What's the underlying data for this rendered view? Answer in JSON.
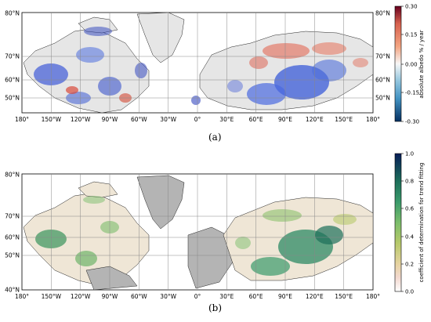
{
  "panels": [
    {
      "id": "a",
      "label": "(a)",
      "lat_ticks_left": [
        "80°N",
        "70°N",
        "60°N",
        "50°N"
      ],
      "lat_ticks_right": [
        "80°N",
        "70°N",
        "60°N",
        "50°N"
      ],
      "lon_ticks": [
        "180°",
        "150°W",
        "120°W",
        "90°W",
        "60°W",
        "30°W",
        "0°",
        "30°E",
        "60°E",
        "90°E",
        "120°E",
        "150°E",
        "180°"
      ],
      "colorbar": {
        "label": "absolute albedo % / year",
        "ticks": [
          "0.30",
          "0.15",
          "0.00",
          "-0.15",
          "-0.30"
        ],
        "colormap": [
          "#67001f",
          "#d6604d",
          "#f4a582",
          "#f7f7f7",
          "#92c5de",
          "#4393c3",
          "#2166ac",
          "#053061"
        ]
      }
    },
    {
      "id": "b",
      "label": "(b)",
      "lat_ticks_left": [
        "80°N",
        "70°N",
        "60°N",
        "50°N",
        "40°N"
      ],
      "lon_ticks": [
        "180°",
        "150°W",
        "120°W",
        "90°W",
        "60°W",
        "30°W",
        "0°",
        "30°E",
        "60°E",
        "90°E",
        "120°E",
        "150°E",
        "180°"
      ],
      "colorbar": {
        "label": "coefficient of determination for trend fitting",
        "ticks": [
          "1.0",
          "0.8",
          "0.6",
          "0.4",
          "0.2",
          "0.0"
        ],
        "colormap": [
          "#081d58",
          "#1d6f5a",
          "#3a9a6b",
          "#7bbd6b",
          "#b7c96a",
          "#e6d3a0",
          "#f3d9d0",
          "#ffffff"
        ]
      }
    }
  ]
}
